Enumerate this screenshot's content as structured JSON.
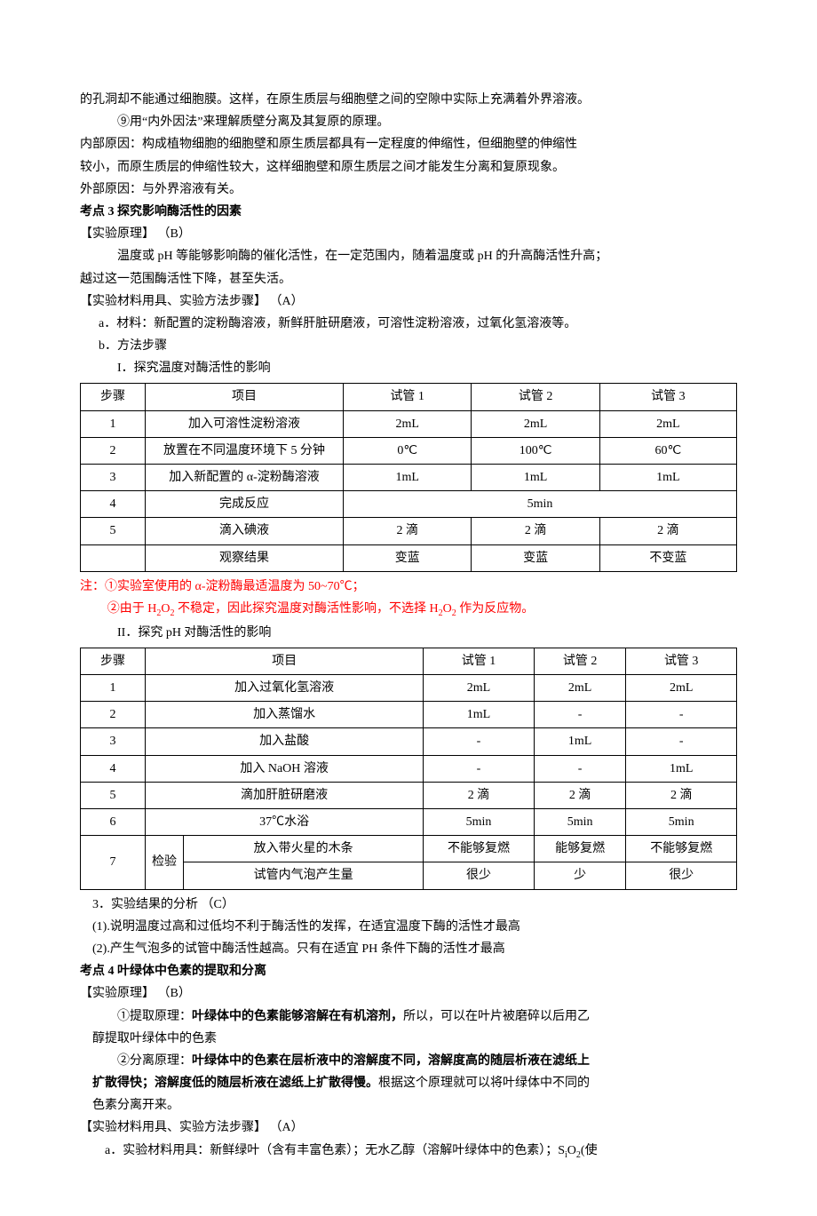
{
  "intro_lines": [
    "的孔洞却不能通过细胞膜。这样，在原生质层与细胞壁之间的空隙中实际上充满着外界溶液。",
    "⑨用“内外因法”来理解质壁分离及其复原的原理。"
  ],
  "causes": {
    "inner1": "内部原因：构成植物细胞的细胞壁和原生质层都具有一定程度的伸缩性，但细胞壁的伸缩性",
    "inner2": "较小，而原生质层的伸缩性较大，这样细胞壁和原生质层之间才能发生分离和复原现象。",
    "outer": "外部原因：与外界溶液有关。"
  },
  "kd3": {
    "title": "考点 3     探究影响酶活性的因素",
    "principle_label": "【实验原理】   （B）",
    "principle_p1": "温度或 pH 等能够影响酶的催化活性，在一定范围内，随着温度或 pH 的升高酶活性升高；",
    "principle_p2": "越过这一范围酶活性下降，甚至失活。",
    "materials_label": "【实验材料用具、实验方法步骤】   （A）",
    "mat_a": "a．材料：新配置的淀粉酶溶液，新鲜肝脏研磨液，可溶性淀粉溶液，过氧化氢溶液等。",
    "mat_b": "b．方法步骤",
    "t1_title": "I．探究温度对酶活性的影响",
    "t1_cols": [
      "步骤",
      "项目",
      "试管 1",
      "试管 2",
      "试管 3"
    ],
    "t1_rows": [
      [
        "1",
        "加入可溶性淀粉溶液",
        "2mL",
        "2mL",
        "2mL"
      ],
      [
        "2",
        "放置在不同温度环境下 5 分钟",
        "0℃",
        "100℃",
        "60℃"
      ],
      [
        "3",
        "加入新配置的 α-淀粉酶溶液",
        "1mL",
        "1mL",
        "1mL"
      ]
    ],
    "t1_row4": [
      "4",
      "完成反应",
      "5min"
    ],
    "t1_rows2": [
      [
        "5",
        "滴入碘液",
        "2 滴",
        "2 滴",
        "2 滴"
      ],
      [
        "",
        "观察结果",
        "变蓝",
        "变蓝",
        "不变蓝"
      ]
    ],
    "t1_note1": "注：①实验室使用的 α-淀粉酶最适温度为 50~70℃；",
    "t1_note2_a": "②由于 H",
    "t1_note2_b": "2",
    "t1_note2_c": "O",
    "t1_note2_d": "2",
    "t1_note2_e": " 不稳定，因此探究温度对酶活性影响，不选择 H",
    "t1_note2_f": "2",
    "t1_note2_g": "O",
    "t1_note2_h": "2",
    "t1_note2_i": " 作为反应物。",
    "t2_title": "II．探究 pH 对酶活性的影响",
    "t2_cols": [
      "步骤",
      "项目",
      "试管 1",
      "试管 2",
      "试管 3"
    ],
    "t2_rows": [
      [
        "1",
        "加入过氧化氢溶液",
        "2mL",
        "2mL",
        "2mL"
      ],
      [
        "2",
        "加入蒸馏水",
        "1mL",
        "-",
        "-"
      ],
      [
        "3",
        "加入盐酸",
        "-",
        "1mL",
        "-"
      ],
      [
        "4",
        "加入 NaOH 溶液",
        "-",
        "-",
        "1mL"
      ],
      [
        "5",
        "滴加肝脏研磨液",
        "2 滴",
        "2 滴",
        "2 滴"
      ],
      [
        "6",
        "37℃水浴",
        "5min",
        "5min",
        "5min"
      ]
    ],
    "t2_row7_label": "7",
    "t2_row7_group": "检验",
    "t2_row7a": [
      "放入带火星的木条",
      "不能够复燃",
      "能够复燃",
      "不能够复燃"
    ],
    "t2_row7b": [
      "试管内气泡产生量",
      "很少",
      "少",
      "很少"
    ],
    "result_label": "3．实验结果的分析     （C）",
    "r1": "(1).说明温度过高和过低均不利于酶活性的发挥，在适宜温度下酶的活性才最高",
    "r2": "(2).产生气泡多的试管中酶活性越高。只有在适宜 PH 条件下酶的活性才最高"
  },
  "kd4": {
    "title": "考点 4     叶绿体中色素的提取和分离",
    "principle_label": "【实验原理】   （B）",
    "p1a": "①提取原理：",
    "p1b": "叶绿体中的色素能够溶解在有机溶剂，",
    "p1c": "所以，可以在叶片被磨碎以后用乙",
    "p1d": "醇提取叶绿体中的色素",
    "p2a": "②分离原理：",
    "p2b": "叶绿体中的色素在层析液中的溶解度不同，溶解度高的随层析液在滤纸上",
    "p2c": "扩散得快；溶解度低的随层析液在滤纸上扩散得慢。",
    "p2d": "根据这个原理就可以将叶绿体中不同的",
    "p2e": "色素分离开来。",
    "materials_label": "【实验材料用具、实验方法步骤】   （A）",
    "mat_a_1": "a．实验材料用具：新鲜绿叶（含有丰富色素）；无水乙醇（溶解叶绿体中的色素）；S",
    "mat_a_2": "i",
    "mat_a_3": "O",
    "mat_a_4": "2",
    "mat_a_5": "(使"
  }
}
